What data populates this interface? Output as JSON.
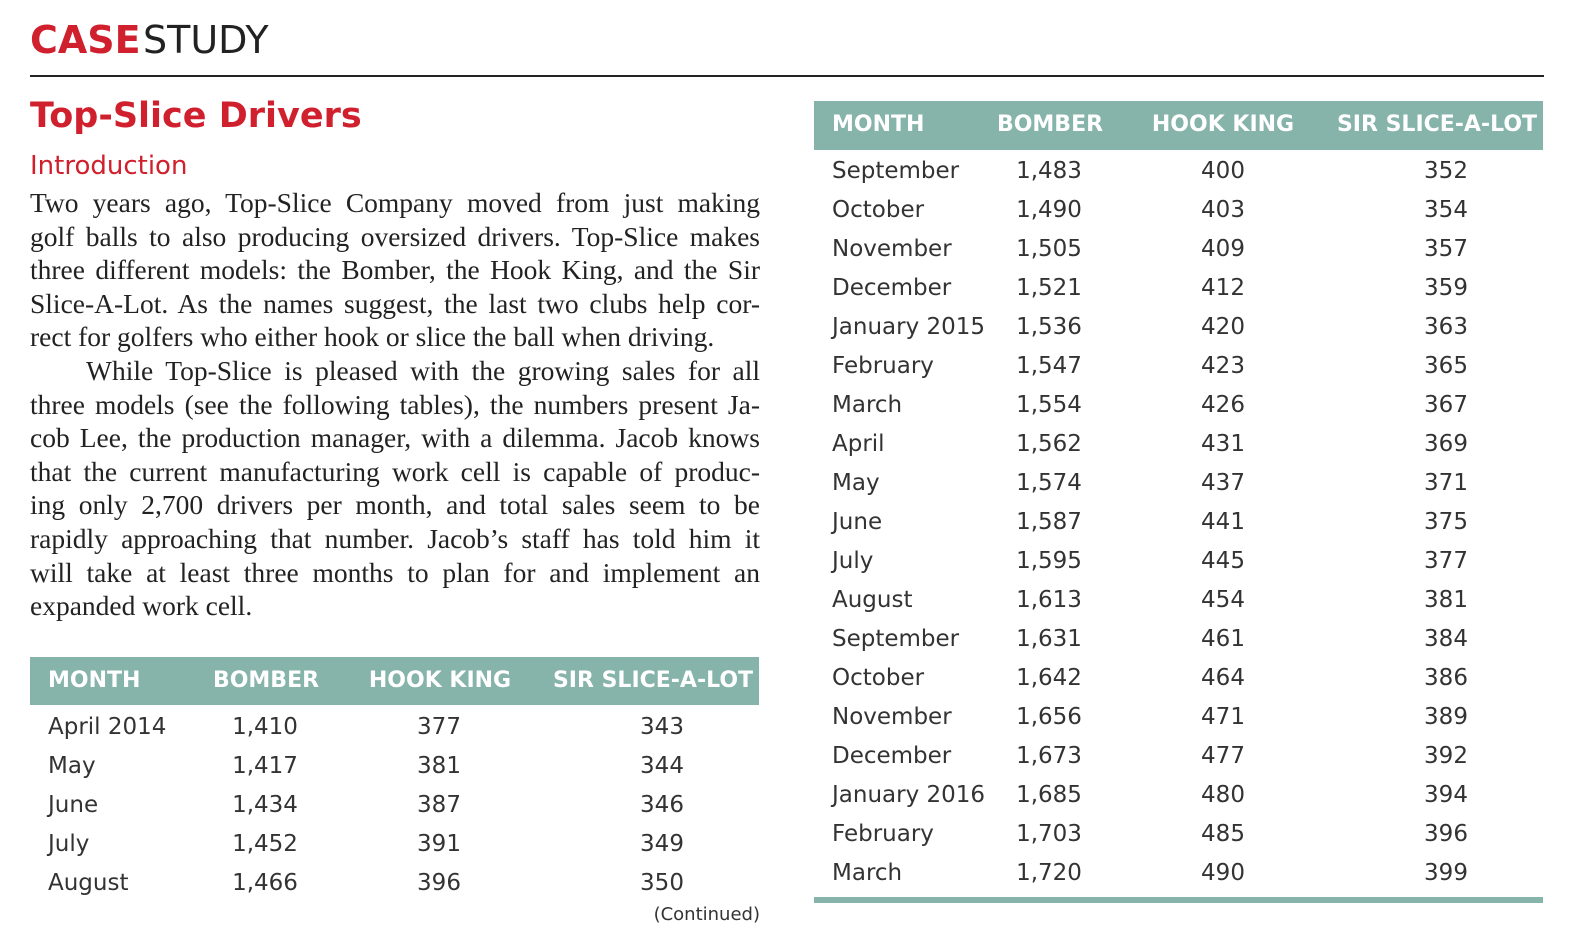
{
  "header": {
    "label_bold": "CASE",
    "label": "STUDY"
  },
  "title": "Top-Slice Drivers",
  "section_heading": "Introduction",
  "paragraphs": [
    [
      "Two years ago, Top-Slice Company moved from just making",
      "golf balls to also producing oversized drivers. Top-Slice makes",
      "three different models: the Bomber, the Hook King, and the Sir",
      "Slice-A-Lot. As the names suggest, the last two clubs help cor-",
      "rect for golfers who either hook or slice the ball when driving."
    ],
    [
      "While Top-Slice is pleased with the growing sales for all",
      "three models (see the following tables), the numbers present Ja-",
      "cob Lee, the production manager, with a dilemma. Jacob knows",
      "that the current manufacturing work cell is capable of produc-",
      "ing only 2,700 drivers per month, and total sales seem to be",
      "rapidly approaching that number. Jacob’s staff has told him it",
      "will take at least three months to plan for and implement an",
      "expanded work cell."
    ]
  ],
  "table1": {
    "headers": [
      "MONTH",
      "BOMBER",
      "HOOK KING",
      "SIR SLICE-A-LOT"
    ],
    "rows": [
      [
        "April 2014",
        "1,410",
        "377",
        "343"
      ],
      [
        "May",
        "1,417",
        "381",
        "344"
      ],
      [
        "June",
        "1,434",
        "387",
        "346"
      ],
      [
        "July",
        "1,452",
        "391",
        "349"
      ],
      [
        "August",
        "1,466",
        "396",
        "350"
      ]
    ],
    "note": "(Continued)"
  },
  "table2": {
    "headers": [
      "MONTH",
      "BOMBER",
      "HOOK KING",
      "SIR SLICE-A-LOT"
    ],
    "rows": [
      [
        "September",
        "1,483",
        "400",
        "352"
      ],
      [
        "October",
        "1,490",
        "403",
        "354"
      ],
      [
        "November",
        "1,505",
        "409",
        "357"
      ],
      [
        "December",
        "1,521",
        "412",
        "359"
      ],
      [
        "January 2015",
        "1,536",
        "420",
        "363"
      ],
      [
        "February",
        "1,547",
        "423",
        "365"
      ],
      [
        "March",
        "1,554",
        "426",
        "367"
      ],
      [
        "April",
        "1,562",
        "431",
        "369"
      ],
      [
        "May",
        "1,574",
        "437",
        "371"
      ],
      [
        "June",
        "1,587",
        "441",
        "375"
      ],
      [
        "July",
        "1,595",
        "445",
        "377"
      ],
      [
        "August",
        "1,613",
        "454",
        "381"
      ],
      [
        "September",
        "1,631",
        "461",
        "384"
      ],
      [
        "October",
        "1,642",
        "464",
        "386"
      ],
      [
        "November",
        "1,656",
        "471",
        "389"
      ],
      [
        "December",
        "1,673",
        "477",
        "392"
      ],
      [
        "January 2016",
        "1,685",
        "480",
        "394"
      ],
      [
        "February",
        "1,703",
        "485",
        "396"
      ],
      [
        "March",
        "1,720",
        "490",
        "399"
      ]
    ]
  }
}
